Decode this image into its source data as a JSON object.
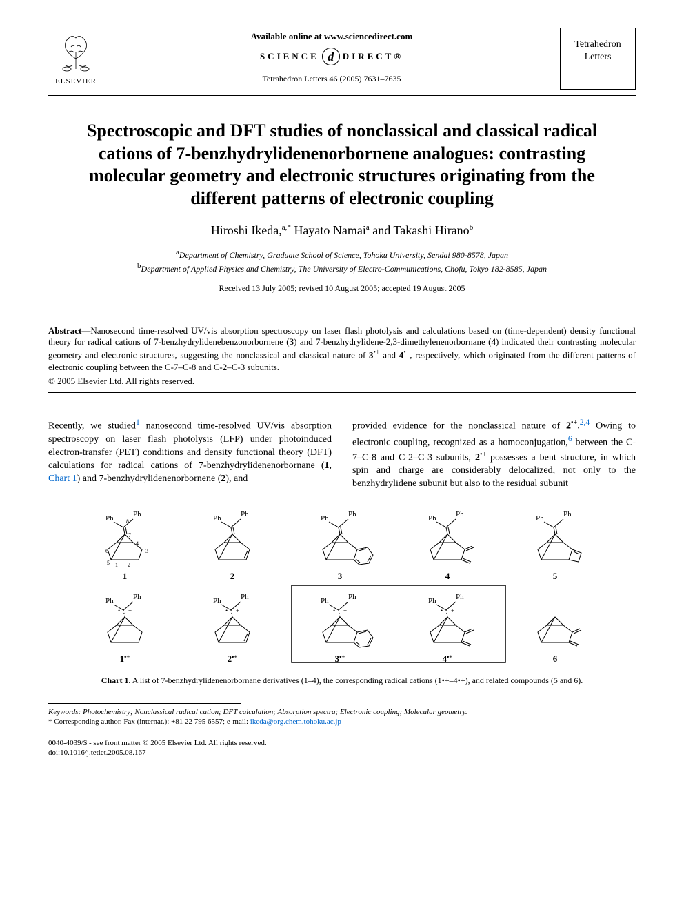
{
  "header": {
    "publisher": "ELSEVIER",
    "available_online": "Available online at www.sciencedirect.com",
    "sd_text_1": "SCIENCE",
    "sd_text_2": "DIRECT®",
    "citation": "Tetrahedron Letters 46 (2005) 7631–7635",
    "journal_name_1": "Tetrahedron",
    "journal_name_2": "Letters"
  },
  "title": "Spectroscopic and DFT studies of nonclassical and classical radical cations of 7-benzhydrylidenenorbornene analogues: contrasting molecular geometry and electronic structures originating from the different patterns of electronic coupling",
  "authors": {
    "a1_name": "Hiroshi Ikeda,",
    "a1_sup": "a,*",
    "a2_name": " Hayato Namai",
    "a2_sup": "a",
    "a3_conj": " and ",
    "a3_name": "Takashi Hirano",
    "a3_sup": "b"
  },
  "affiliations": {
    "a": "Department of Chemistry, Graduate School of Science, Tohoku University, Sendai 980-8578, Japan",
    "b": "Department of Applied Physics and Chemistry, The University of Electro-Communications, Chofu, Tokyo 182-8585, Japan"
  },
  "dates": "Received 13 July 2005; revised 10 August 2005; accepted 19 August 2005",
  "abstract": {
    "label": "Abstract—",
    "text_1": "Nanosecond time-resolved UV/vis absorption spectroscopy on laser flash photolysis and calculations based on (time-dependent) density functional theory for radical cations of 7-benzhydrylidenebenzonorbornene (",
    "b3": "3",
    "text_2": ") and 7-benzhydrylidene-2,3-dimethylenenorbornane (",
    "b4": "4",
    "text_3": ") indicated their contrasting molecular geometry and electronic structures, suggesting the nonclassical and classical nature of ",
    "b3r": "3",
    "rad": "•+",
    "text_4": " and ",
    "b4r": "4",
    "text_5": ", respectively, which originated from the different patterns of electronic coupling between the C-7–C-8 and C-2–C-3 subunits."
  },
  "copyright": "© 2005 Elsevier Ltd. All rights reserved.",
  "body": {
    "col1": {
      "t1": "Recently, we studied",
      "ref1": "1",
      "t2": " nanosecond time-resolved UV/vis absorption spectroscopy on laser flash photolysis (LFP) under photoinduced electron-transfer (PET) conditions and density functional theory (DFT) calculations for radical cations of 7-benzhydrylidenenorbornane (",
      "b1": "1",
      "t3": ", ",
      "chart_ref": "Chart 1",
      "t4": ") and 7-benzhydrylidenenorbornene (",
      "b2": "2",
      "t5": "), and"
    },
    "col2": {
      "t1": "provided evidence for the nonclassical nature of ",
      "b2": "2",
      "rad": "•+",
      "t2": ".",
      "refs": "2,4",
      "t3": " Owing to electronic coupling, recognized as a homoconjugation,",
      "ref6": "6",
      "t4": " between the C-7–C-8 and C-2–C-3 subunits, ",
      "b2b": "2",
      "t5": " possesses a bent structure, in which spin and charge are considerably delocalized, not only to the benzhydrylidene subunit but also to the residual subunit"
    }
  },
  "chart": {
    "structures": [
      {
        "label": "1",
        "ph1": "Ph",
        "ph2": "Ph",
        "atoms": [
          "8",
          "7",
          "6",
          "5",
          "4",
          "3",
          "1",
          "2"
        ]
      },
      {
        "label": "2",
        "ph1": "Ph",
        "ph2": "Ph"
      },
      {
        "label": "3",
        "ph1": "Ph",
        "ph2": "Ph"
      },
      {
        "label": "4",
        "ph1": "Ph",
        "ph2": "Ph"
      },
      {
        "label": "5",
        "ph1": "Ph",
        "ph2": "Ph"
      },
      {
        "label": "1•+",
        "ph1": "Ph",
        "ph2": "Ph"
      },
      {
        "label": "2•+",
        "ph1": "Ph",
        "ph2": "Ph"
      },
      {
        "label": "3•+",
        "ph1": "Ph",
        "ph2": "Ph"
      },
      {
        "label": "4•+",
        "ph1": "Ph",
        "ph2": "Ph"
      },
      {
        "label": "6"
      }
    ],
    "caption_b": "Chart 1.",
    "caption": " A list of 7-benzhydrylidenenorbornane derivatives (1–4), the corresponding radical cations (1•+–4•+), and related compounds (5 and 6).",
    "boxed_indices": [
      7,
      8
    ],
    "colors": {
      "stroke": "#000000",
      "box_stroke": "#000000",
      "background": "#ffffff"
    }
  },
  "footer": {
    "keywords_label": "Keywords:",
    "keywords": " Photochemistry; Nonclassical radical cation; DFT calculation; Absorption spectra; Electronic coupling; Molecular geometry.",
    "corresponding_label": "* Corresponding author. Fax (internat.): +81 22 795 6557; e-mail: ",
    "email": "ikeda@org.chem.tohoku.ac.jp",
    "issn_line": "0040-4039/$ - see front matter © 2005 Elsevier Ltd. All rights reserved.",
    "doi": "doi:10.1016/j.tetlet.2005.08.167"
  }
}
